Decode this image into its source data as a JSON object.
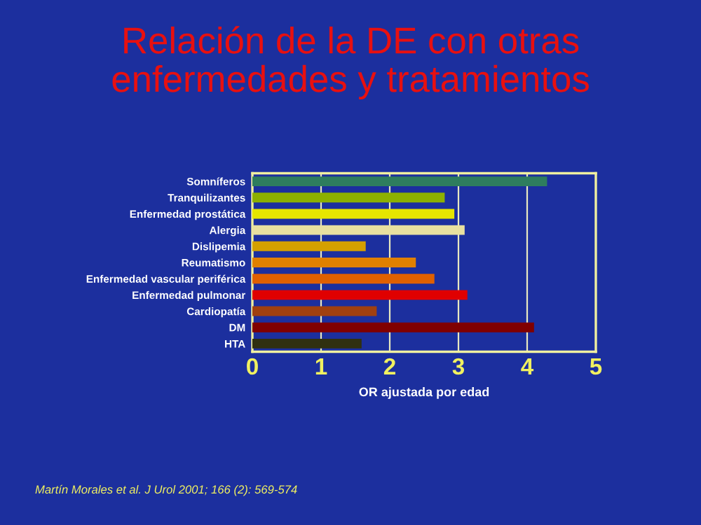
{
  "chart_data": {
    "type": "bar",
    "orientation": "horizontal",
    "title": "Relación de la DE con otras enfermedades y tratamientos",
    "xlabel": "OR ajustada por edad",
    "categories": [
      "Somníferos",
      "Tranquilizantes",
      "Enfermedad prostática",
      "Alergia",
      "Dislipemia",
      "Reumatismo",
      "Enfermedad vascular periférica",
      "Enfermedad pulmonar",
      "Cardiopatía",
      "DM",
      "HTA"
    ],
    "values": [
      4.29,
      2.8,
      2.94,
      3.09,
      1.65,
      2.38,
      2.65,
      3.13,
      1.81,
      4.1,
      1.59
    ],
    "colors": [
      "#2e7d5e",
      "#8db000",
      "#e6e600",
      "#e8e0a0",
      "#d4a000",
      "#e08000",
      "#e06000",
      "#e00000",
      "#a04010",
      "#800000",
      "#303010"
    ],
    "xlim": [
      0,
      5
    ],
    "xticks": [
      0,
      1,
      2,
      3,
      4,
      5
    ],
    "grid": "x",
    "annotations": [
      "Martín Morales et al. J Urol 2001; 166 (2): 569-574"
    ]
  }
}
